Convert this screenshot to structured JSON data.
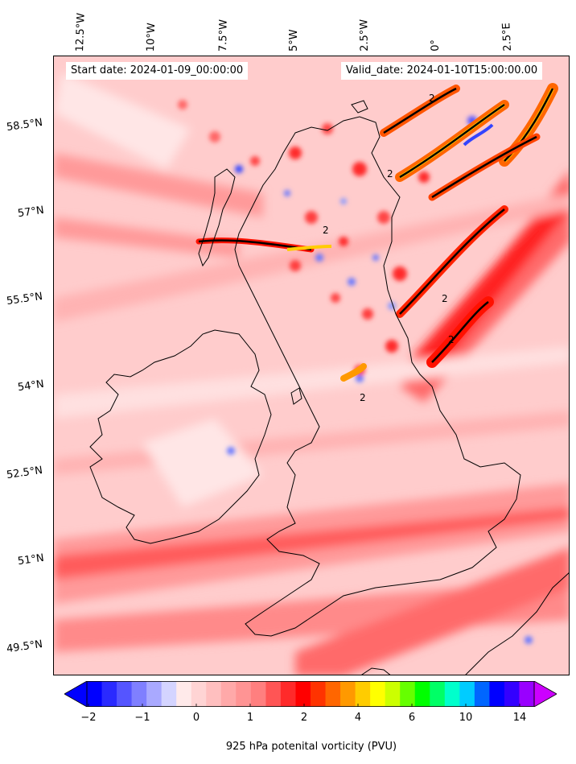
{
  "header": {
    "start_date": "Start date: 2024-01-09_00:00:00",
    "valid_date": "Valid_date: 2024-01-10T15:00:00.00"
  },
  "longitude_labels": [
    "12.5°W",
    "10°W",
    "7.5°W",
    "5°W",
    "2.5°W",
    "0°",
    "2.5°E"
  ],
  "latitude_labels": [
    "58.5°N",
    "57°N",
    "55.5°N",
    "54°N",
    "52.5°N",
    "51°N",
    "49.5°N"
  ],
  "colorbar": {
    "label": "925 hPa potenital vorticity (PVU)",
    "ticks": [
      "−2",
      "−1",
      "0",
      "1",
      "2",
      "4",
      "6",
      "10",
      "14"
    ],
    "colors": [
      "#0000ff",
      "#2a2aff",
      "#5555ff",
      "#7f7fff",
      "#a9a9ff",
      "#d4d4ff",
      "#ffeaea",
      "#ffd4d4",
      "#ffbfbf",
      "#ffa9a9",
      "#ff9494",
      "#ff7f7f",
      "#ff5555",
      "#ff2a2a",
      "#ff0000",
      "#ff3300",
      "#ff6600",
      "#ff9900",
      "#ffcc00",
      "#ffff00",
      "#ccff00",
      "#66ff00",
      "#00ff00",
      "#00ff66",
      "#00ffcc",
      "#00ccff",
      "#0066ff",
      "#0000ff",
      "#3300ff",
      "#9900ff"
    ],
    "extend_low_color": "#0000ff",
    "extend_high_color": "#cc00ff"
  },
  "map": {
    "background_color": "#ffd6d6",
    "coastline_color": "#000000",
    "contour_label": "2"
  }
}
